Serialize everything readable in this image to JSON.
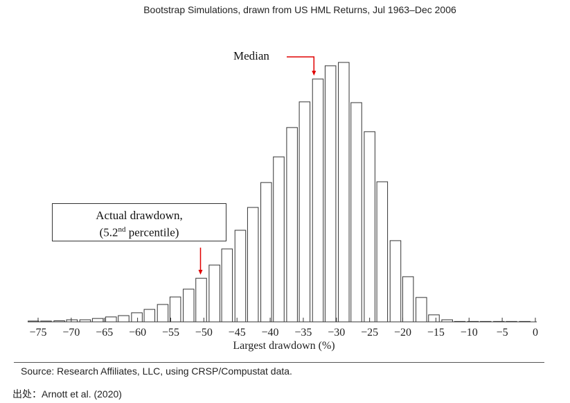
{
  "chart_data": {
    "type": "bar",
    "title": "Bootstrap Simulations, drawn from US HML Returns, Jul 1963–Dec 2006",
    "xlabel": "Largest drawdown (%)",
    "ylabel": "",
    "xlim": [
      -76,
      0
    ],
    "x_ticks": [
      -75,
      -70,
      -65,
      -60,
      -55,
      -50,
      -45,
      -40,
      -35,
      -30,
      -25,
      -20,
      -15,
      -10,
      -5,
      0
    ],
    "x_tick_labels": [
      "−75",
      "−70",
      "−65",
      "−60",
      "−55",
      "−50",
      "−45",
      "−40",
      "−35",
      "−30",
      "−25",
      "−20",
      "−15",
      "−10",
      "−5",
      "0"
    ],
    "bin_centers": [
      -75.7,
      -73.8,
      -71.8,
      -69.9,
      -67.9,
      -66.0,
      -64.0,
      -62.1,
      -60.1,
      -58.2,
      -56.2,
      -54.3,
      -52.3,
      -50.4,
      -48.4,
      -46.5,
      -44.5,
      -42.6,
      -40.6,
      -38.7,
      -36.7,
      -34.8,
      -32.8,
      -30.9,
      -28.9,
      -27.0,
      -25.0,
      -23.1,
      -21.1,
      -19.2,
      -17.2,
      -15.3,
      -13.3,
      -11.4,
      -9.4,
      -7.5,
      -5.5,
      -3.6,
      -1.6
    ],
    "values": [
      0.3,
      0.3,
      0.4,
      0.8,
      0.8,
      1.3,
      1.9,
      2.4,
      3.5,
      4.8,
      6.7,
      9.6,
      12.6,
      16.8,
      21.9,
      28.1,
      35.3,
      44.1,
      53.7,
      63.6,
      74.9,
      84.8,
      93.6,
      98.7,
      100,
      84.5,
      73.3,
      54.0,
      31.3,
      17.4,
      9.4,
      2.7,
      0.8,
      0.1,
      0.1,
      0.1,
      0.1,
      0.1,
      0.1
    ],
    "grid": false,
    "annotations": {
      "median_label": "Median",
      "median_x": -33.5,
      "actual_label_line1": "Actual drawdown,",
      "actual_label_pre": "(5.2",
      "actual_label_sup": "nd",
      "actual_label_post": " percentile)",
      "actual_x": -50.4
    },
    "colors": {
      "bar_fill": "#ffffff",
      "bar_edge": "#333333",
      "arrow": "#e00000"
    }
  },
  "footer": {
    "source": "Source: Research Affiliates, LLC, using CRSP/Compustat data.",
    "citation": "出处：Arnott et al. (2020)"
  }
}
